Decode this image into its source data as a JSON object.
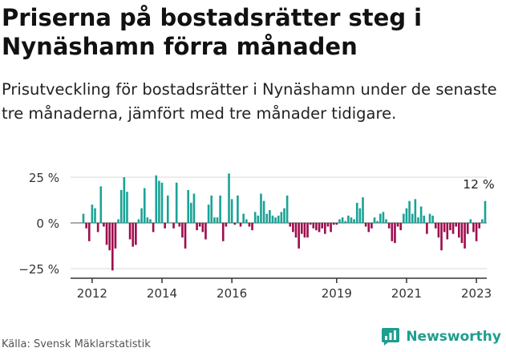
{
  "header": {
    "title": "Priserna på bostadsrätter steg i Nynäshamn förra månaden",
    "subtitle": "Prisutveckling för bostadsrätter i Nynäshamn under de senaste tre månaderna, jämfört med tre månader tidigare."
  },
  "footer": {
    "source": "Källa: Svensk Mäklarstatistik",
    "brand": "Newsworthy"
  },
  "colors": {
    "positive": "#1aa396",
    "negative": "#9e0d4e",
    "axis": "#333333",
    "text": "#333333"
  },
  "icons": {
    "brand_logo": "newsworthy-logo-icon"
  },
  "chart_data": {
    "type": "bar",
    "title": "Priserna på bostadsrätter steg i Nynäshamn förra månaden",
    "ylabel": "",
    "xlabel": "",
    "ylim": [
      -32,
      30
    ],
    "yticks": [
      25,
      0,
      -25
    ],
    "ytick_labels": [
      "25 %",
      "0 %",
      "−25 %"
    ],
    "xticks": [
      {
        "label": "2012",
        "index": 3
      },
      {
        "label": "2014",
        "index": 27
      },
      {
        "label": "2016",
        "index": 51
      },
      {
        "label": "2019",
        "index": 87
      },
      {
        "label": "2021",
        "index": 111
      },
      {
        "label": "2023",
        "index": 135
      }
    ],
    "start_period": "2011-09",
    "annotation": {
      "label": "12 %",
      "index": 138
    },
    "values": [
      5,
      -3,
      -10,
      10,
      8,
      -5,
      20,
      -2,
      -12,
      -15,
      -26,
      -14,
      2,
      18,
      25,
      17,
      -9,
      -13,
      -12,
      2,
      8,
      19,
      3,
      2,
      -5,
      26,
      23,
      22,
      -3,
      15,
      0,
      -3,
      22,
      -2,
      -8,
      -14,
      18,
      11,
      16,
      -4,
      -2,
      -5,
      -9,
      10,
      15,
      3,
      3,
      15,
      -10,
      -2,
      27,
      13,
      -1,
      15,
      -2,
      5,
      2,
      -2,
      -4,
      6,
      4,
      16,
      12,
      5,
      7,
      4,
      3,
      4,
      6,
      8,
      15,
      -2,
      -5,
      -8,
      -14,
      -6,
      -8,
      -8,
      -1,
      -3,
      -4,
      -5,
      -3,
      -6,
      -2,
      -5,
      -1,
      -1,
      2,
      3,
      1,
      4,
      3,
      2,
      11,
      8,
      14,
      -2,
      -5,
      -3,
      3,
      1,
      5,
      6,
      2,
      -3,
      -10,
      -11,
      -2,
      -4,
      5,
      8,
      12,
      5,
      13,
      3,
      9,
      4,
      -6,
      5,
      4,
      -3,
      -8,
      -15,
      -5,
      -9,
      -4,
      -6,
      -2,
      -8,
      -11,
      -14,
      -6,
      2,
      -5,
      -10,
      -3,
      2,
      12
    ]
  }
}
